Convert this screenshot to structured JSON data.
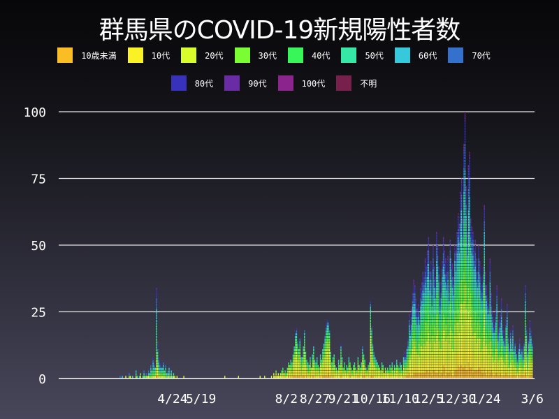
{
  "chart_data": {
    "type": "bar",
    "stacked": true,
    "title": "群馬県のCOVID-19新規陽性者数",
    "xlabel": "",
    "ylabel": "",
    "ylim": [
      0,
      100
    ],
    "xlim": [
      "2020-01-15",
      "2021-03-08"
    ],
    "grid": true,
    "legend_placement": "top",
    "yticks": [
      0,
      25,
      50,
      75,
      100
    ],
    "xticks": [
      "4/24",
      "5/19",
      "8/2",
      "8/27",
      "9/21",
      "10/16",
      "11/10",
      "12/5",
      "12/30",
      "1/24",
      "3/6"
    ],
    "xtick_dates": [
      "2020-04-24",
      "2020-05-19",
      "2020-08-02",
      "2020-08-27",
      "2020-09-21",
      "2020-10-16",
      "2020-11-10",
      "2020-12-05",
      "2020-12-30",
      "2021-01-24",
      "2021-03-06"
    ],
    "start_date": "2020-03-07",
    "series": [
      {
        "name": "10歳未満",
        "color": "#fbbd24"
      },
      {
        "name": "10代",
        "color": "#fbf226"
      },
      {
        "name": "20代",
        "color": "#d9fd2a"
      },
      {
        "name": "30代",
        "color": "#7afd33"
      },
      {
        "name": "40代",
        "color": "#38f65a"
      },
      {
        "name": "50代",
        "color": "#36e8a6"
      },
      {
        "name": "60代",
        "color": "#36c8db"
      },
      {
        "name": "70代",
        "color": "#3471cd"
      },
      {
        "name": "80代",
        "color": "#3831bc"
      },
      {
        "name": "90代",
        "color": "#6a2ca4"
      },
      {
        "name": "100代",
        "color": "#8b248c"
      },
      {
        "name": "不明",
        "color": "#77204b"
      }
    ],
    "age_share": {
      "early": [
        0.03,
        0.06,
        0.14,
        0.12,
        0.12,
        0.14,
        0.14,
        0.11,
        0.09,
        0.04,
        0.0,
        0.01
      ],
      "summer": [
        0.05,
        0.15,
        0.3,
        0.16,
        0.12,
        0.08,
        0.06,
        0.04,
        0.03,
        0.01,
        0.0,
        0.0
      ],
      "winter": [
        0.06,
        0.1,
        0.17,
        0.13,
        0.13,
        0.12,
        0.1,
        0.08,
        0.07,
        0.03,
        0.005,
        0.005
      ]
    },
    "daily_totals": [
      0,
      0,
      1,
      0,
      1,
      0,
      0,
      1,
      0,
      0,
      2,
      1,
      0,
      1,
      0,
      0,
      3,
      1,
      0,
      1,
      2,
      0,
      1,
      3,
      1,
      2,
      1,
      3,
      2,
      5,
      3,
      8,
      6,
      4,
      34,
      14,
      8,
      6,
      5,
      4,
      6,
      3,
      5,
      2,
      3,
      5,
      2,
      3,
      1,
      2,
      1,
      0,
      1,
      0,
      0,
      0,
      0,
      0,
      1,
      0,
      0,
      0,
      0,
      0,
      0,
      0,
      0,
      0,
      0,
      0,
      0,
      0,
      0,
      0,
      0,
      0,
      0,
      0,
      0,
      0,
      0,
      0,
      0,
      0,
      0,
      0,
      0,
      0,
      0,
      0,
      0,
      0,
      0,
      0,
      1,
      0,
      0,
      0,
      0,
      0,
      0,
      0,
      0,
      0,
      0,
      0,
      1,
      0,
      0,
      0,
      0,
      0,
      0,
      0,
      0,
      0,
      0,
      0,
      0,
      0,
      0,
      0,
      0,
      0,
      0,
      1,
      0,
      0,
      0,
      1,
      0,
      0,
      0,
      0,
      0,
      1,
      0,
      2,
      1,
      3,
      1,
      2,
      1,
      2,
      3,
      4,
      2,
      3,
      2,
      4,
      6,
      5,
      7,
      6,
      9,
      12,
      17,
      19,
      14,
      11,
      15,
      9,
      8,
      12,
      18,
      10,
      7,
      6,
      5,
      8,
      4,
      9,
      12,
      7,
      6,
      8,
      5,
      4,
      9,
      7,
      11,
      13,
      16,
      20,
      22,
      21,
      18,
      10,
      6,
      8,
      9,
      5,
      4,
      3,
      7,
      5,
      13,
      8,
      4,
      6,
      3,
      5,
      4,
      8,
      6,
      4,
      3,
      5,
      6,
      4,
      3,
      8,
      5,
      4,
      6,
      12,
      9,
      7,
      4,
      3,
      5,
      6,
      29,
      20,
      13,
      10,
      8,
      7,
      6,
      5,
      4,
      3,
      6,
      5,
      2,
      4,
      3,
      4,
      3,
      5,
      4,
      6,
      3,
      5,
      4,
      7,
      5,
      4,
      6,
      5,
      3,
      8,
      10,
      9,
      12,
      15,
      24,
      20,
      26,
      32,
      37,
      35,
      30,
      26,
      28,
      24,
      34,
      36,
      40,
      38,
      45,
      42,
      48,
      53,
      40,
      44,
      36,
      50,
      42,
      38,
      55,
      50,
      42,
      30,
      36,
      44,
      53,
      48,
      45,
      40,
      46,
      35,
      52,
      45,
      43,
      38,
      50,
      48,
      55,
      62,
      58,
      70,
      75,
      60,
      88,
      100,
      72,
      55,
      80,
      85,
      60,
      57,
      55,
      48,
      52,
      45,
      40,
      50,
      44,
      38,
      35,
      42,
      65,
      40,
      35,
      30,
      28,
      45,
      32,
      25,
      22,
      20,
      26,
      35,
      18,
      22,
      24,
      30,
      20,
      18,
      15,
      22,
      28,
      16,
      12,
      18,
      15,
      20,
      12,
      14,
      10,
      8,
      12,
      15,
      10,
      12,
      9,
      14,
      35,
      20,
      12,
      15,
      22,
      18,
      14
    ]
  }
}
